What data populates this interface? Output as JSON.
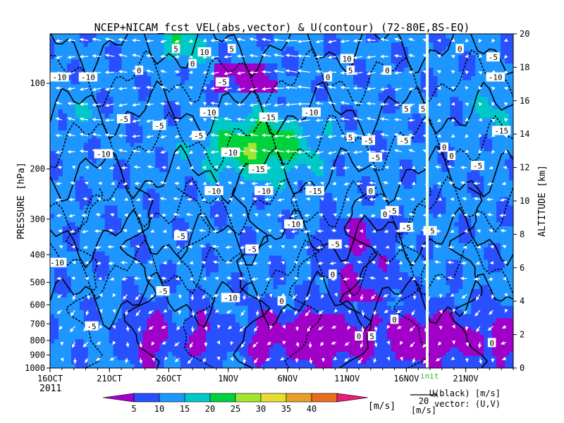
{
  "chart_data": {
    "type": "heatmap",
    "title": "NCEP+NICAM_fcst VEL(abs,vector) & U(contour)  (72-80E,8S-EQ)",
    "ylabel_left": "PRESSURE [hPa]",
    "ylabel_right": "ALTITUDE [km]",
    "x_ticks": [
      "16OCT",
      "21OCT",
      "26OCT",
      "1NOV",
      "6NOV",
      "11NOV",
      "16NOV",
      "21NOV"
    ],
    "x_year": "2011",
    "x_range_days": [
      0,
      39
    ],
    "y_ticks_pressure": [
      "100",
      "200",
      "300",
      "400",
      "500",
      "600",
      "700",
      "800",
      "900",
      "1000"
    ],
    "y_ticks_altitude": [
      "0",
      "2",
      "4",
      "6",
      "8",
      "10",
      "12",
      "14",
      "16",
      "18",
      "20"
    ],
    "altitude_range_km": [
      0,
      20
    ],
    "init_label": "init",
    "init_day": 31,
    "colorbar": {
      "levels": [
        5,
        10,
        15,
        20,
        25,
        30,
        35,
        40
      ],
      "unit": "[m/s]",
      "colors": [
        "#a000c8",
        "#2850ff",
        "#1e96ff",
        "#00c8c8",
        "#00d23c",
        "#a0e632",
        "#e6dc32",
        "#e6a028",
        "#e66e1e",
        "#e61e78"
      ]
    },
    "vector_ref": {
      "value": "20",
      "unit": "[m/s]"
    },
    "legend_lines": [
      "U(black) [m/s]",
      "vector: (U,V)"
    ],
    "contour_labels": [
      {
        "t": "-10",
        "day": 0.8,
        "km": 17.4
      },
      {
        "t": "-10",
        "day": 3.2,
        "km": 17.4
      },
      {
        "t": "-5",
        "day": 6.2,
        "km": 14.9
      },
      {
        "t": "-10",
        "day": 4.5,
        "km": 12.8
      },
      {
        "t": "-5",
        "day": 9.2,
        "km": 14.5
      },
      {
        "t": "-5",
        "day": 12.5,
        "km": 13.9
      },
      {
        "t": "-10",
        "day": 13.4,
        "km": 15.3
      },
      {
        "t": "-10",
        "day": 15.2,
        "km": 12.9
      },
      {
        "t": "-15",
        "day": 18.4,
        "km": 15.0
      },
      {
        "t": "-10",
        "day": 22.0,
        "km": 15.3
      },
      {
        "t": "-15",
        "day": 17.5,
        "km": 11.9
      },
      {
        "t": "-10",
        "day": 13.8,
        "km": 10.6
      },
      {
        "t": "-10",
        "day": 18.0,
        "km": 10.6
      },
      {
        "t": "-15",
        "day": 22.3,
        "km": 10.6
      },
      {
        "t": "-5",
        "day": 27.4,
        "km": 12.6
      },
      {
        "t": "-10",
        "day": 20.5,
        "km": 8.6
      },
      {
        "t": "-5",
        "day": 28.8,
        "km": 9.4
      },
      {
        "t": "-5",
        "day": 30.0,
        "km": 8.4
      },
      {
        "t": "-5",
        "day": 11.0,
        "km": 7.9
      },
      {
        "t": "-5",
        "day": 17.0,
        "km": 7.1
      },
      {
        "t": "-5",
        "day": 24.0,
        "km": 7.4
      },
      {
        "t": "-5",
        "day": 9.5,
        "km": 4.6
      },
      {
        "t": "-10",
        "day": 15.2,
        "km": 4.2
      },
      {
        "t": "-5",
        "day": 3.5,
        "km": 2.5
      },
      {
        "t": "-10",
        "day": 0.6,
        "km": 6.3
      },
      {
        "t": "0",
        "day": 19.5,
        "km": 4.0
      },
      {
        "t": "0",
        "day": 23.8,
        "km": 5.6
      },
      {
        "t": "0",
        "day": 28.2,
        "km": 9.2
      },
      {
        "t": "0",
        "day": 33.8,
        "km": 12.7
      },
      {
        "t": "0",
        "day": 27.0,
        "km": 10.6
      },
      {
        "t": "0",
        "day": 29.0,
        "km": 2.9
      },
      {
        "t": "0",
        "day": 26.0,
        "km": 1.9
      },
      {
        "t": "5",
        "day": 27.1,
        "km": 1.9
      },
      {
        "t": "5",
        "day": 10.6,
        "km": 19.1
      },
      {
        "t": "10",
        "day": 13.0,
        "km": 18.9
      },
      {
        "t": "5",
        "day": 15.3,
        "km": 19.1
      },
      {
        "t": "0",
        "day": 12.0,
        "km": 18.2
      },
      {
        "t": "0",
        "day": 7.5,
        "km": 17.8
      },
      {
        "t": "-5",
        "day": 14.5,
        "km": 17.1
      },
      {
        "t": "0",
        "day": 23.4,
        "km": 17.4
      },
      {
        "t": "10",
        "day": 25.0,
        "km": 18.5
      },
      {
        "t": "5",
        "day": 25.3,
        "km": 17.8
      },
      {
        "t": "0",
        "day": 28.4,
        "km": 17.8
      },
      {
        "t": "5",
        "day": 30.0,
        "km": 15.5
      },
      {
        "t": "5",
        "day": 31.4,
        "km": 15.5
      },
      {
        "t": "5",
        "day": 25.3,
        "km": 13.8
      },
      {
        "t": "-5",
        "day": 26.8,
        "km": 13.6
      },
      {
        "t": "-5",
        "day": 29.8,
        "km": 13.6
      },
      {
        "t": "0",
        "day": 34.5,
        "km": 19.1
      },
      {
        "t": "-5",
        "day": 37.3,
        "km": 18.6
      },
      {
        "t": "-10",
        "day": 37.5,
        "km": 17.4
      },
      {
        "t": "-15",
        "day": 38.0,
        "km": 14.2
      },
      {
        "t": "-5",
        "day": 36.0,
        "km": 12.1
      },
      {
        "t": "-5",
        "day": 32.0,
        "km": 8.2
      },
      {
        "t": "0",
        "day": 33.2,
        "km": 13.2
      },
      {
        "t": "0",
        "day": 37.2,
        "km": 1.5
      }
    ]
  }
}
